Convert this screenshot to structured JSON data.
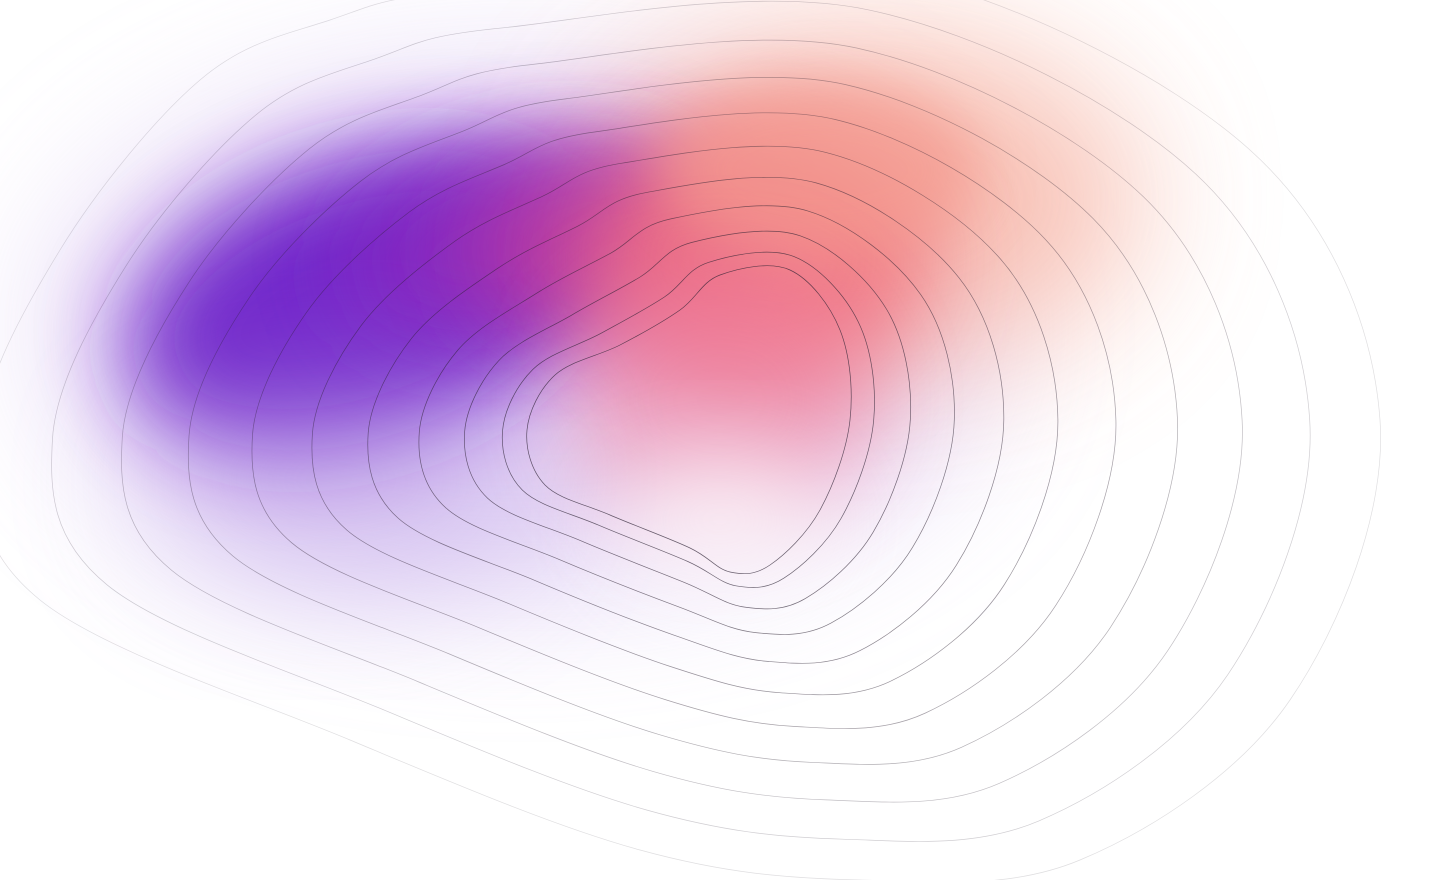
{
  "artwork": {
    "description_type": "abstract-gradient-topography",
    "background_color": "#ffffff",
    "palette": {
      "violet": "#6a1fc8",
      "purple": "#8a2cc0",
      "magenta": "#c63c9a",
      "coral": "#f0707e",
      "salmon": "#f49a8e",
      "pink": "#f07fa0",
      "contour_stroke": "#2a2030"
    },
    "contour_count": 11
  }
}
